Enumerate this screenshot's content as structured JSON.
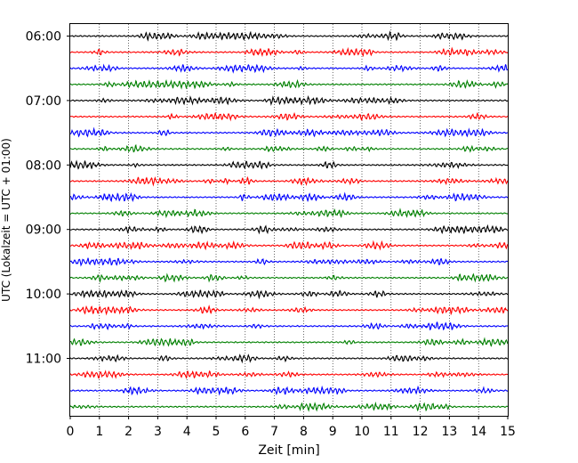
{
  "chart_data": {
    "type": "line",
    "xlabel": "Zeit  [min]",
    "ylabel": "UTC (Lokalzeit = UTC + 01:00)",
    "xlim": [
      0,
      15
    ],
    "x_ticks": [
      0,
      1,
      2,
      3,
      4,
      5,
      6,
      7,
      8,
      9,
      10,
      11,
      12,
      13,
      14,
      15
    ],
    "x_tick_labels": [
      "0",
      "1",
      "2",
      "3",
      "4",
      "5",
      "6",
      "7",
      "8",
      "9",
      "10",
      "11",
      "12",
      "13",
      "14",
      "15"
    ],
    "y_tick_labels": [
      "06:00",
      "07:00",
      "08:00",
      "09:00",
      "10:00",
      "11:00"
    ],
    "grid": "vertical-dotted",
    "trace_interval_min": 15,
    "trace_colors": [
      "#000000",
      "#ff0000",
      "#0000ff",
      "#008000"
    ],
    "trace_starts": [
      "06:00",
      "06:15",
      "06:30",
      "06:45",
      "07:00",
      "07:15",
      "07:30",
      "07:45",
      "08:00",
      "08:15",
      "08:30",
      "08:45",
      "09:00",
      "09:15",
      "09:30",
      "09:45",
      "10:00",
      "10:15",
      "10:30",
      "10:45",
      "11:00",
      "11:15",
      "11:30",
      "11:45"
    ],
    "legend": "none"
  }
}
